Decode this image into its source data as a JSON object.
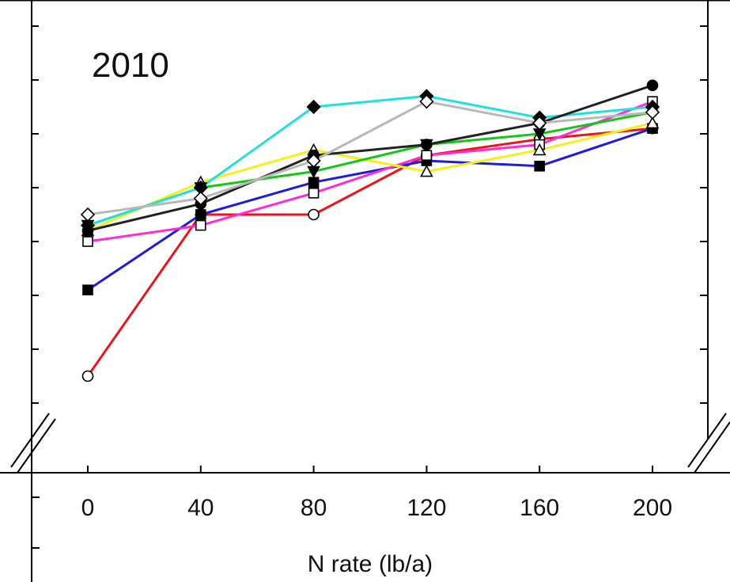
{
  "chart_data": {
    "type": "line",
    "title": "2010",
    "xlabel": "N rate (lb/a)",
    "ylabel": "",
    "x": [
      0,
      40,
      80,
      120,
      160,
      200
    ],
    "x_tick_labels": [
      "0",
      "40",
      "80",
      "120",
      "160",
      "200"
    ],
    "xlim": [
      -20,
      220
    ],
    "ylim": [
      0,
      8.5
    ],
    "y_axis_break": true,
    "grid": false,
    "series": [
      {
        "color": "#e8161c",
        "marker": "open-circle",
        "values": [
          1.5,
          4.5,
          4.5,
          5.6,
          5.9,
          6.1
        ]
      },
      {
        "color": "#1d1dd8",
        "marker": "filled-square",
        "values": [
          3.1,
          4.5,
          5.1,
          5.5,
          5.4,
          6.1
        ]
      },
      {
        "color": "#ff2bd8",
        "marker": "open-square",
        "values": [
          4.0,
          4.3,
          4.9,
          5.6,
          5.8,
          6.6
        ]
      },
      {
        "color": "#f5f01c",
        "marker": "open-triangle",
        "values": [
          4.2,
          5.1,
          5.7,
          5.3,
          5.7,
          6.2
        ]
      },
      {
        "color": "#16c616",
        "marker": "filled-triangle-down",
        "values": [
          4.3,
          5.0,
          5.3,
          5.8,
          6.0,
          6.4
        ]
      },
      {
        "color": "#22e0e0",
        "marker": "filled-diamond",
        "values": [
          4.3,
          5.0,
          6.5,
          6.7,
          6.3,
          6.5
        ]
      },
      {
        "color": "#222222",
        "marker": "filled-circle",
        "values": [
          4.2,
          4.7,
          5.6,
          5.8,
          6.2,
          6.9
        ]
      },
      {
        "color": "#b8b8b8",
        "marker": "open-diamond",
        "values": [
          4.5,
          4.8,
          5.5,
          6.6,
          6.2,
          6.4
        ]
      }
    ]
  }
}
